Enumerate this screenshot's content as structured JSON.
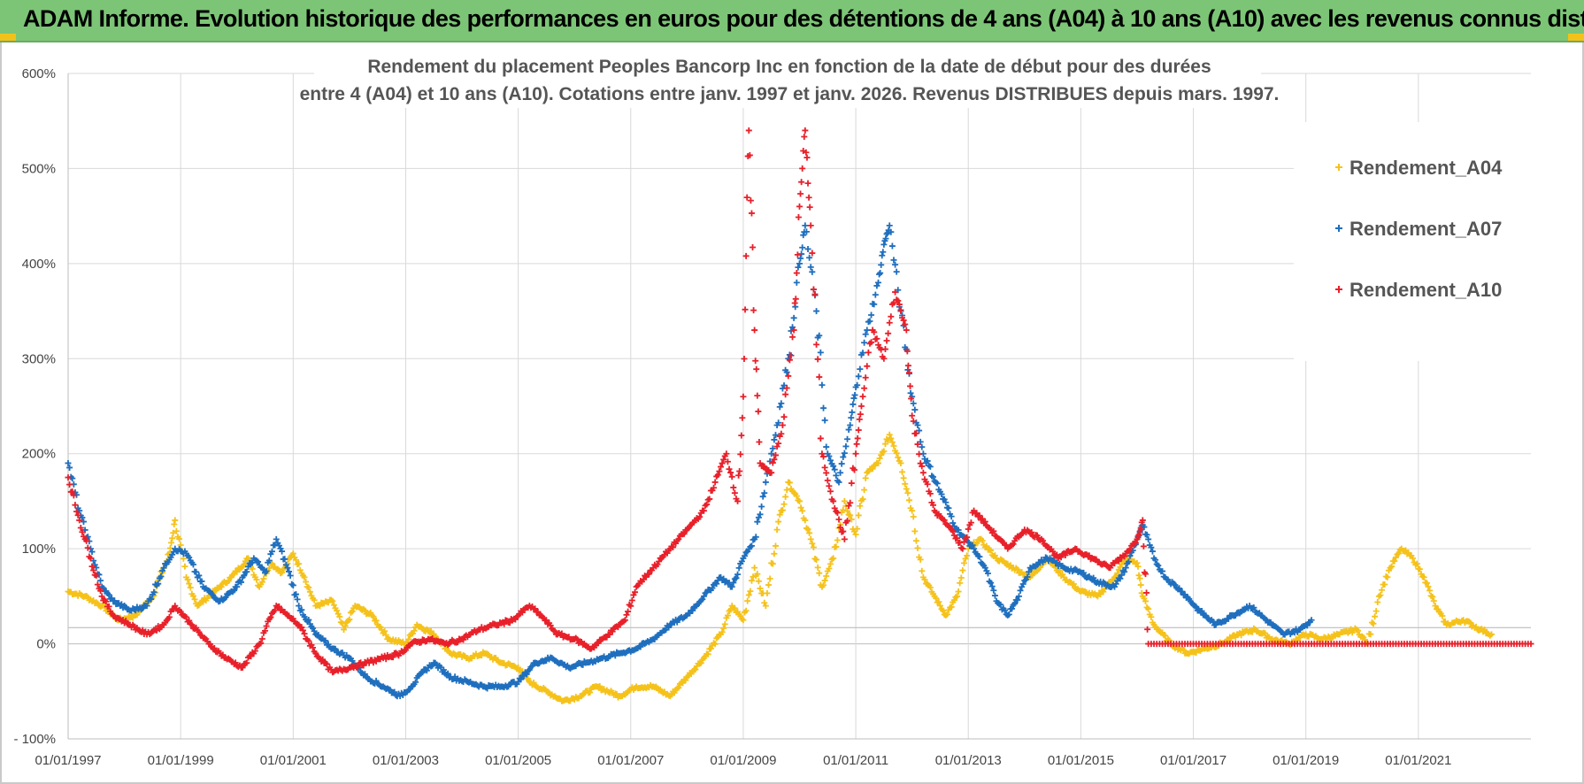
{
  "header": {
    "title": "ADAM Informe. Evolution historique des performances en euros pour des détentions de 4 ans (A04) à 10 ans (A10) avec les revenus connus distribués"
  },
  "chart_data": {
    "type": "scatter",
    "title_line1": "Rendement du placement Peoples Bancorp Inc en fonction de la date de début pour des durées",
    "title_line2": "entre 4 (A04) et 10 ans (A10).  Cotations entre janv. 1997 et janv. 2026. Revenus DISTRIBUES depuis mars. 1997.",
    "x_ticks": [
      "01/01/1997",
      "01/01/1999",
      "01/01/2001",
      "01/01/2003",
      "01/01/2005",
      "01/01/2007",
      "01/01/2009",
      "01/01/2011",
      "01/01/2013",
      "01/01/2015",
      "01/01/2017",
      "01/01/2019",
      "01/01/2021"
    ],
    "y_ticks": [
      "600%",
      "500%",
      "400%",
      "300%",
      "200%",
      "100%",
      "0%",
      "- 100%"
    ],
    "xlim": [
      "01/01/1997",
      "01/01/2023"
    ],
    "ylim": [
      -100,
      600
    ],
    "grid": true,
    "legend_position": "top-right",
    "marker": "+",
    "series": [
      {
        "name": "Rendement_A04",
        "color": "#f5c21b",
        "points": [
          [
            "1997.0",
            55
          ],
          [
            "1997.3",
            50
          ],
          [
            "1997.6",
            40
          ],
          [
            "1997.9",
            25
          ],
          [
            "1998.2",
            30
          ],
          [
            "1998.5",
            50
          ],
          [
            "1998.8",
            95
          ],
          [
            "1998.9",
            130
          ],
          [
            "1999.1",
            70
          ],
          [
            "1999.3",
            40
          ],
          [
            "1999.6",
            55
          ],
          [
            "1999.9",
            70
          ],
          [
            "2000.2",
            90
          ],
          [
            "2000.4",
            60
          ],
          [
            "2000.6",
            85
          ],
          [
            "2000.8",
            75
          ],
          [
            "2001.0",
            95
          ],
          [
            "2001.2",
            70
          ],
          [
            "2001.4",
            40
          ],
          [
            "2001.7",
            45
          ],
          [
            "2001.9",
            15
          ],
          [
            "2002.1",
            40
          ],
          [
            "2002.4",
            30
          ],
          [
            "2002.7",
            5
          ],
          [
            "2003.0",
            0
          ],
          [
            "2003.2",
            20
          ],
          [
            "2003.5",
            10
          ],
          [
            "2003.8",
            -10
          ],
          [
            "2004.1",
            -15
          ],
          [
            "2004.4",
            -10
          ],
          [
            "2004.7",
            -20
          ],
          [
            "2005.0",
            -25
          ],
          [
            "2005.2",
            -40
          ],
          [
            "2005.5",
            -50
          ],
          [
            "2005.8",
            -60
          ],
          [
            "2006.1",
            -55
          ],
          [
            "2006.4",
            -45
          ],
          [
            "2006.8",
            -55
          ],
          [
            "2007.1",
            -45
          ],
          [
            "2007.4",
            -45
          ],
          [
            "2007.7",
            -55
          ],
          [
            "2008.0",
            -35
          ],
          [
            "2008.3",
            -15
          ],
          [
            "2008.6",
            10
          ],
          [
            "2008.8",
            40
          ],
          [
            "2009.0",
            25
          ],
          [
            "2009.2",
            80
          ],
          [
            "2009.4",
            40
          ],
          [
            "2009.6",
            120
          ],
          [
            "2009.8",
            170
          ],
          [
            "2010.0",
            150
          ],
          [
            "2010.2",
            110
          ],
          [
            "2010.4",
            60
          ],
          [
            "2010.6",
            90
          ],
          [
            "2010.8",
            150
          ],
          [
            "2011.0",
            115
          ],
          [
            "2011.2",
            180
          ],
          [
            "2011.4",
            190
          ],
          [
            "2011.6",
            220
          ],
          [
            "2011.8",
            190
          ],
          [
            "2012.0",
            140
          ],
          [
            "2012.2",
            70
          ],
          [
            "2012.4",
            50
          ],
          [
            "2012.6",
            30
          ],
          [
            "2012.8",
            50
          ],
          [
            "2013.0",
            100
          ],
          [
            "2013.2",
            110
          ],
          [
            "2013.5",
            90
          ],
          [
            "2013.8",
            80
          ],
          [
            "2014.1",
            70
          ],
          [
            "2014.4",
            90
          ],
          [
            "2014.7",
            70
          ],
          [
            "2015.0",
            55
          ],
          [
            "2015.3",
            50
          ],
          [
            "2015.6",
            70
          ],
          [
            "2015.8",
            90
          ],
          [
            "2016.0",
            85
          ],
          [
            "2016.1",
            50
          ],
          [
            "2016.3",
            20
          ],
          [
            "2016.6",
            0
          ],
          [
            "2016.9",
            -10
          ],
          [
            "2017.2",
            -5
          ],
          [
            "2017.5",
            0
          ],
          [
            "2017.8",
            10
          ],
          [
            "2018.1",
            15
          ],
          [
            "2018.4",
            5
          ],
          [
            "2018.7",
            0
          ],
          [
            "2019.0",
            10
          ],
          [
            "2019.3",
            5
          ],
          [
            "2019.6",
            10
          ],
          [
            "2019.9",
            15
          ],
          [
            "2020.1",
            0
          ],
          [
            "2020.3",
            50
          ],
          [
            "2020.5",
            80
          ],
          [
            "2020.7",
            100
          ],
          [
            "2020.9",
            90
          ],
          [
            "2021.1",
            70
          ],
          [
            "2021.3",
            40
          ],
          [
            "2021.5",
            20
          ],
          [
            "2021.8",
            25
          ],
          [
            "2022.1",
            15
          ],
          [
            "2022.3",
            10
          ]
        ]
      },
      {
        "name": "Rendement_A07",
        "color": "#1f6fbe",
        "points": [
          [
            "1997.0",
            190
          ],
          [
            "1997.2",
            140
          ],
          [
            "1997.4",
            100
          ],
          [
            "1997.6",
            60
          ],
          [
            "1997.8",
            45
          ],
          [
            "1998.1",
            35
          ],
          [
            "1998.4",
            40
          ],
          [
            "1998.7",
            80
          ],
          [
            "1998.9",
            100
          ],
          [
            "1999.1",
            95
          ],
          [
            "1999.4",
            60
          ],
          [
            "1999.7",
            45
          ],
          [
            "2000.0",
            60
          ],
          [
            "2000.3",
            90
          ],
          [
            "2000.5",
            75
          ],
          [
            "2000.7",
            110
          ],
          [
            "2000.9",
            80
          ],
          [
            "2001.1",
            40
          ],
          [
            "2001.4",
            10
          ],
          [
            "2001.7",
            -5
          ],
          [
            "2002.0",
            -15
          ],
          [
            "2002.3",
            -35
          ],
          [
            "2002.6",
            -45
          ],
          [
            "2002.9",
            -55
          ],
          [
            "2003.1",
            -45
          ],
          [
            "2003.3",
            -30
          ],
          [
            "2003.5",
            -20
          ],
          [
            "2003.8",
            -35
          ],
          [
            "2004.1",
            -40
          ],
          [
            "2004.4",
            -45
          ],
          [
            "2004.7",
            -45
          ],
          [
            "2005.0",
            -40
          ],
          [
            "2005.3",
            -20
          ],
          [
            "2005.6",
            -15
          ],
          [
            "2005.9",
            -25
          ],
          [
            "2006.2",
            -20
          ],
          [
            "2006.5",
            -15
          ],
          [
            "2006.8",
            -10
          ],
          [
            "2007.1",
            -5
          ],
          [
            "2007.4",
            5
          ],
          [
            "2007.7",
            20
          ],
          [
            "2008.0",
            30
          ],
          [
            "2008.3",
            50
          ],
          [
            "2008.6",
            70
          ],
          [
            "2008.8",
            60
          ],
          [
            "2009.0",
            90
          ],
          [
            "2009.2",
            110
          ],
          [
            "2009.4",
            170
          ],
          [
            "2009.6",
            230
          ],
          [
            "2009.8",
            300
          ],
          [
            "2010.0",
            400
          ],
          [
            "2010.1",
            440
          ],
          [
            "2010.3",
            350
          ],
          [
            "2010.5",
            200
          ],
          [
            "2010.7",
            170
          ],
          [
            "2010.9",
            230
          ],
          [
            "2011.0",
            270
          ],
          [
            "2011.2",
            330
          ],
          [
            "2011.4",
            380
          ],
          [
            "2011.5",
            420
          ],
          [
            "2011.6",
            440
          ],
          [
            "2011.8",
            350
          ],
          [
            "2012.0",
            260
          ],
          [
            "2012.2",
            200
          ],
          [
            "2012.5",
            160
          ],
          [
            "2012.8",
            120
          ],
          [
            "2013.1",
            100
          ],
          [
            "2013.3",
            80
          ],
          [
            "2013.5",
            45
          ],
          [
            "2013.7",
            30
          ],
          [
            "2013.9",
            50
          ],
          [
            "2014.1",
            80
          ],
          [
            "2014.4",
            90
          ],
          [
            "2014.7",
            80
          ],
          [
            "2015.0",
            75
          ],
          [
            "2015.3",
            65
          ],
          [
            "2015.6",
            60
          ],
          [
            "2015.8",
            80
          ],
          [
            "2016.0",
            110
          ],
          [
            "2016.1",
            125
          ],
          [
            "2016.3",
            90
          ],
          [
            "2016.5",
            70
          ],
          [
            "2016.8",
            55
          ],
          [
            "2017.1",
            35
          ],
          [
            "2017.4",
            20
          ],
          [
            "2017.7",
            30
          ],
          [
            "2018.0",
            40
          ],
          [
            "2018.3",
            25
          ],
          [
            "2018.6",
            10
          ],
          [
            "2018.9",
            15
          ],
          [
            "2019.1",
            25
          ]
        ]
      },
      {
        "name": "Rendement_A10",
        "color": "#e8202a",
        "points": [
          [
            "1997.0",
            175
          ],
          [
            "1997.2",
            130
          ],
          [
            "1997.4",
            90
          ],
          [
            "1997.6",
            50
          ],
          [
            "1997.8",
            30
          ],
          [
            "1998.1",
            20
          ],
          [
            "1998.4",
            10
          ],
          [
            "1998.7",
            20
          ],
          [
            "1998.9",
            40
          ],
          [
            "1999.2",
            20
          ],
          [
            "1999.5",
            0
          ],
          [
            "1999.8",
            -15
          ],
          [
            "2000.1",
            -25
          ],
          [
            "2000.4",
            0
          ],
          [
            "2000.7",
            40
          ],
          [
            "2000.9",
            30
          ],
          [
            "2001.1",
            20
          ],
          [
            "2001.4",
            -10
          ],
          [
            "2001.7",
            -30
          ],
          [
            "2002.0",
            -25
          ],
          [
            "2002.3",
            -20
          ],
          [
            "2002.6",
            -15
          ],
          [
            "2002.9",
            -10
          ],
          [
            "2003.1",
            0
          ],
          [
            "2003.4",
            5
          ],
          [
            "2003.7",
            0
          ],
          [
            "2004.0",
            5
          ],
          [
            "2004.3",
            15
          ],
          [
            "2004.6",
            20
          ],
          [
            "2004.9",
            25
          ],
          [
            "2005.2",
            40
          ],
          [
            "2005.4",
            30
          ],
          [
            "2005.7",
            10
          ],
          [
            "2006.0",
            5
          ],
          [
            "2006.3",
            -5
          ],
          [
            "2006.6",
            10
          ],
          [
            "2006.9",
            25
          ],
          [
            "2007.1",
            60
          ],
          [
            "2007.4",
            80
          ],
          [
            "2007.7",
            100
          ],
          [
            "2008.0",
            120
          ],
          [
            "2008.3",
            140
          ],
          [
            "2008.5",
            170
          ],
          [
            "2008.7",
            200
          ],
          [
            "2008.9",
            150
          ],
          [
            "2009.0",
            260
          ],
          [
            "2009.1",
            540
          ],
          [
            "2009.2",
            330
          ],
          [
            "2009.3",
            190
          ],
          [
            "2009.5",
            180
          ],
          [
            "2009.7",
            230
          ],
          [
            "2009.9",
            330
          ],
          [
            "2010.0",
            460
          ],
          [
            "2010.1",
            540
          ],
          [
            "2010.2",
            440
          ],
          [
            "2010.4",
            200
          ],
          [
            "2010.6",
            150
          ],
          [
            "2010.8",
            110
          ],
          [
            "2011.0",
            200
          ],
          [
            "2011.1",
            250
          ],
          [
            "2011.3",
            330
          ],
          [
            "2011.5",
            300
          ],
          [
            "2011.7",
            370
          ],
          [
            "2011.9",
            330
          ],
          [
            "2012.0",
            240
          ],
          [
            "2012.2",
            180
          ],
          [
            "2012.4",
            140
          ],
          [
            "2012.7",
            120
          ],
          [
            "2012.9",
            100
          ],
          [
            "2013.1",
            140
          ],
          [
            "2013.4",
            120
          ],
          [
            "2013.7",
            100
          ],
          [
            "2014.0",
            120
          ],
          [
            "2014.3",
            110
          ],
          [
            "2014.6",
            90
          ],
          [
            "2014.9",
            100
          ],
          [
            "2015.2",
            90
          ],
          [
            "2015.5",
            80
          ],
          [
            "2015.8",
            95
          ],
          [
            "2016.0",
            110
          ],
          [
            "2016.1",
            130
          ],
          [
            "2016.2",
            0
          ],
          [
            "2016.5",
            0
          ],
          [
            "2017.0",
            0
          ],
          [
            "2017.5",
            0
          ],
          [
            "2018.0",
            0
          ],
          [
            "2018.5",
            0
          ],
          [
            "2019.0",
            0
          ],
          [
            "2019.5",
            0
          ],
          [
            "2020.0",
            0
          ],
          [
            "2020.5",
            0
          ],
          [
            "2021.0",
            0
          ],
          [
            "2021.5",
            0
          ],
          [
            "2022.0",
            0
          ],
          [
            "2022.5",
            0
          ],
          [
            "2023.0",
            0
          ]
        ]
      }
    ]
  }
}
